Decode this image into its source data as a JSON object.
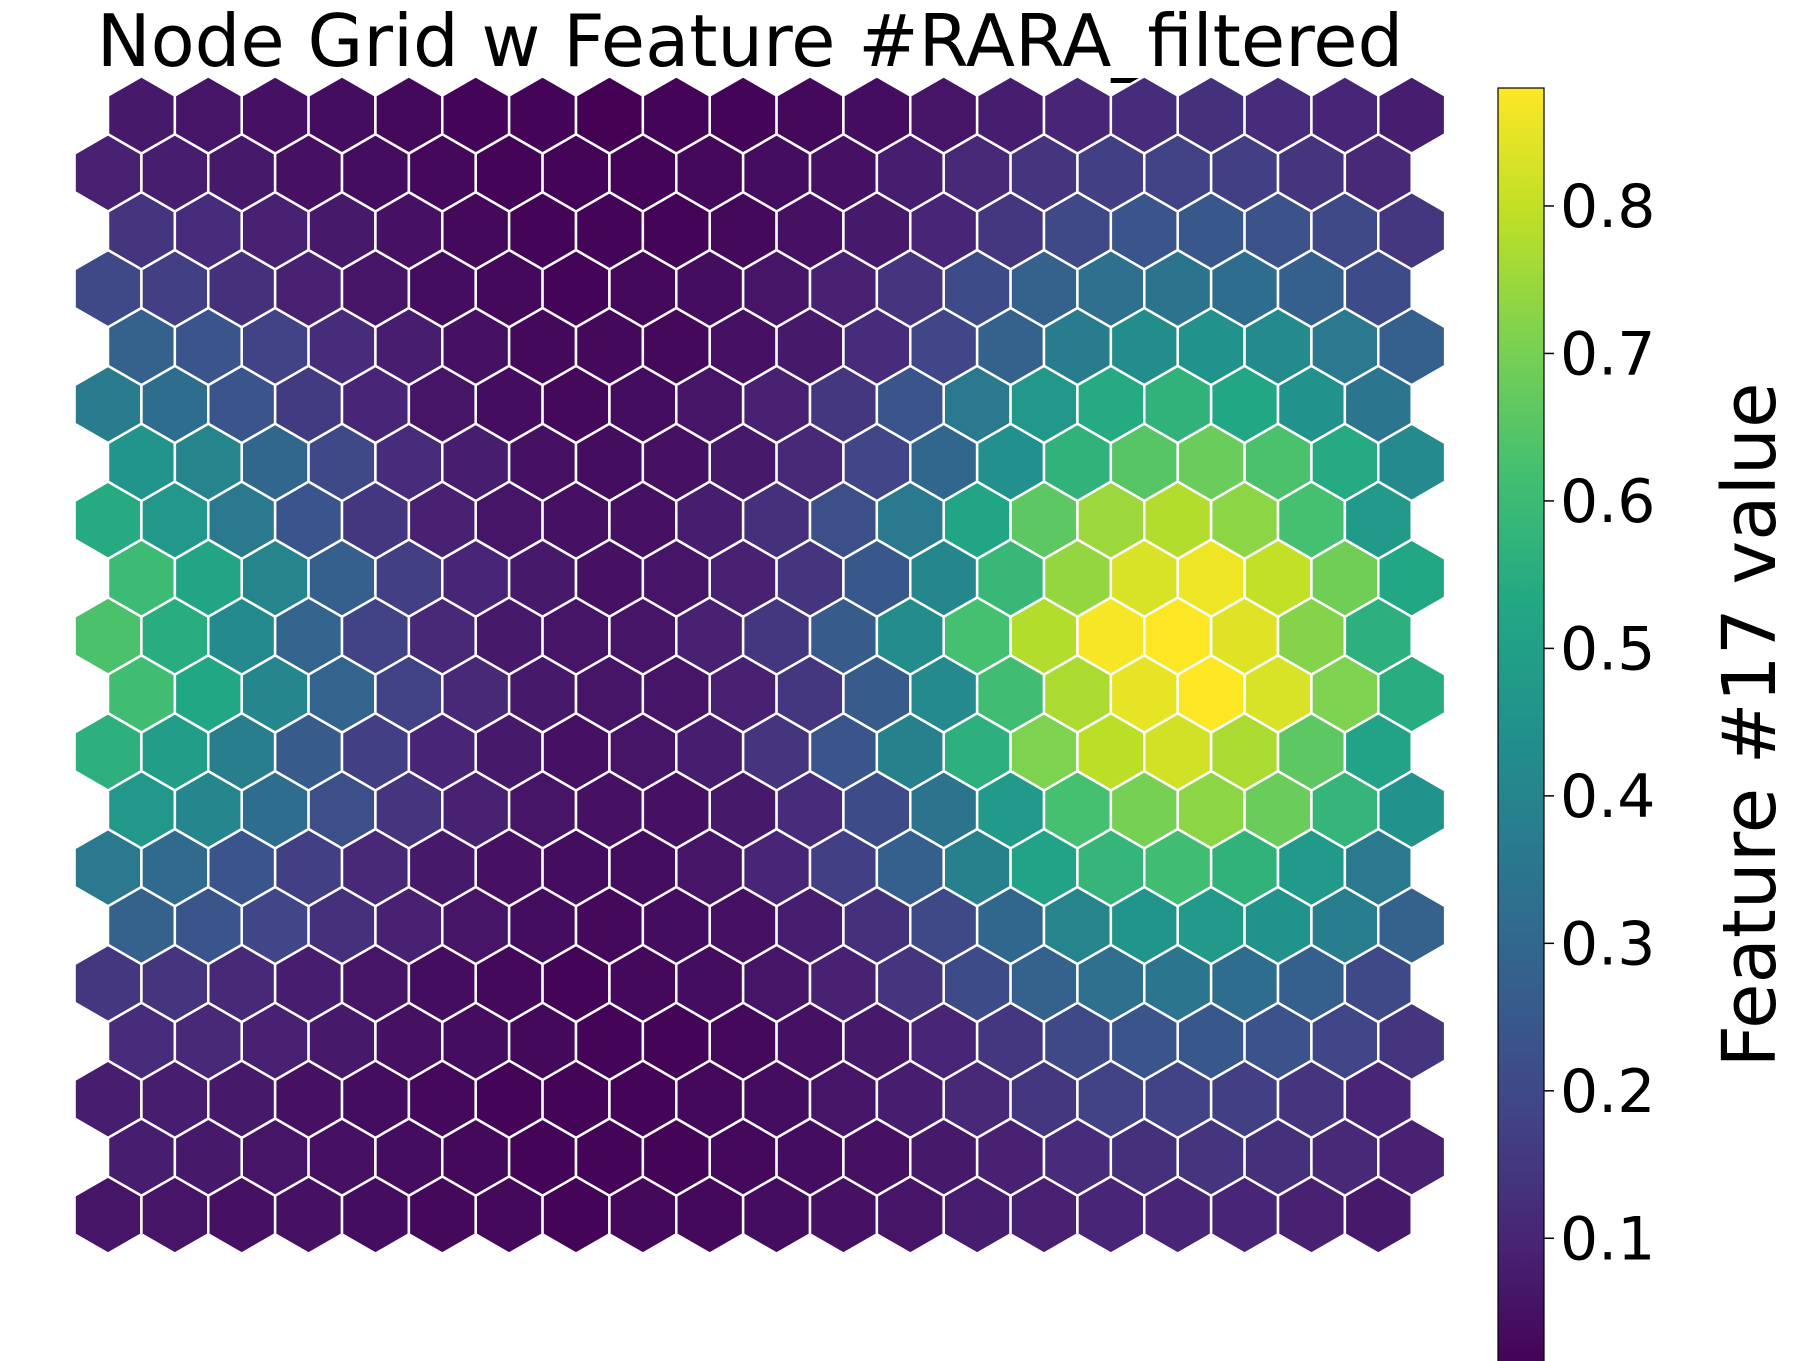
{
  "chart_data": {
    "type": "heatmap",
    "title": "Node Grid w Feature #RARA_filtered",
    "colorbar": {
      "label": "Feature #17 value",
      "ticks": [
        "0.1",
        "0.2",
        "0.3",
        "0.4",
        "0.5",
        "0.6",
        "0.7",
        "0.8"
      ],
      "tick_values": [
        0.1,
        0.2,
        0.3,
        0.4,
        0.5,
        0.6,
        0.7,
        0.8
      ],
      "range": [
        0.01,
        0.88
      ],
      "colormap": "viridis"
    },
    "grid": {
      "rows": 20,
      "cols": 20,
      "layout": "hexagonal",
      "odd_rows_offset": true,
      "axes_visible": false
    },
    "values": [
      [
        0.06,
        0.06,
        0.05,
        0.05,
        0.04,
        0.03,
        0.03,
        0.02,
        0.03,
        0.03,
        0.04,
        0.05,
        0.06,
        0.08,
        0.09,
        0.1,
        0.1,
        0.1,
        0.09,
        0.07
      ],
      [
        0.08,
        0.07,
        0.06,
        0.05,
        0.04,
        0.03,
        0.02,
        0.02,
        0.02,
        0.03,
        0.04,
        0.05,
        0.07,
        0.09,
        0.12,
        0.13,
        0.14,
        0.13,
        0.11,
        0.09
      ],
      [
        0.08,
        0.08,
        0.07,
        0.05,
        0.04,
        0.03,
        0.02,
        0.02,
        0.02,
        0.03,
        0.04,
        0.06,
        0.08,
        0.11,
        0.15,
        0.18,
        0.18,
        0.17,
        0.14,
        0.1
      ],
      [
        0.12,
        0.11,
        0.09,
        0.07,
        0.05,
        0.04,
        0.03,
        0.02,
        0.02,
        0.03,
        0.05,
        0.07,
        0.1,
        0.15,
        0.2,
        0.24,
        0.25,
        0.23,
        0.19,
        0.14
      ],
      [
        0.15,
        0.14,
        0.11,
        0.08,
        0.06,
        0.04,
        0.03,
        0.02,
        0.03,
        0.04,
        0.06,
        0.09,
        0.14,
        0.21,
        0.28,
        0.33,
        0.35,
        0.32,
        0.27,
        0.2
      ],
      [
        0.28,
        0.24,
        0.19,
        0.13,
        0.09,
        0.06,
        0.04,
        0.03,
        0.04,
        0.05,
        0.08,
        0.13,
        0.2,
        0.3,
        0.4,
        0.46,
        0.48,
        0.45,
        0.38,
        0.28
      ],
      [
        0.36,
        0.31,
        0.24,
        0.17,
        0.11,
        0.07,
        0.05,
        0.04,
        0.04,
        0.06,
        0.1,
        0.17,
        0.27,
        0.39,
        0.51,
        0.58,
        0.61,
        0.57,
        0.48,
        0.36
      ],
      [
        0.47,
        0.41,
        0.32,
        0.22,
        0.14,
        0.09,
        0.06,
        0.05,
        0.05,
        0.07,
        0.12,
        0.21,
        0.34,
        0.48,
        0.62,
        0.7,
        0.73,
        0.68,
        0.58,
        0.45
      ],
      [
        0.56,
        0.49,
        0.38,
        0.26,
        0.17,
        0.1,
        0.07,
        0.05,
        0.06,
        0.08,
        0.14,
        0.24,
        0.39,
        0.56,
        0.71,
        0.79,
        0.82,
        0.77,
        0.66,
        0.51
      ],
      [
        0.61,
        0.53,
        0.41,
        0.29,
        0.18,
        0.11,
        0.07,
        0.06,
        0.06,
        0.09,
        0.15,
        0.26,
        0.42,
        0.61,
        0.77,
        0.85,
        0.88,
        0.83,
        0.71,
        0.55
      ],
      [
        0.63,
        0.55,
        0.42,
        0.29,
        0.18,
        0.11,
        0.07,
        0.06,
        0.06,
        0.09,
        0.15,
        0.26,
        0.43,
        0.62,
        0.78,
        0.87,
        0.88,
        0.84,
        0.72,
        0.56
      ],
      [
        0.6,
        0.52,
        0.4,
        0.27,
        0.17,
        0.1,
        0.07,
        0.05,
        0.06,
        0.09,
        0.14,
        0.25,
        0.41,
        0.59,
        0.74,
        0.83,
        0.86,
        0.8,
        0.69,
        0.53
      ],
      [
        0.54,
        0.47,
        0.36,
        0.24,
        0.15,
        0.09,
        0.06,
        0.05,
        0.05,
        0.08,
        0.13,
        0.22,
        0.36,
        0.52,
        0.66,
        0.75,
        0.78,
        0.73,
        0.62,
        0.48
      ],
      [
        0.46,
        0.4,
        0.3,
        0.2,
        0.12,
        0.08,
        0.05,
        0.04,
        0.05,
        0.07,
        0.11,
        0.19,
        0.3,
        0.44,
        0.57,
        0.65,
        0.68,
        0.63,
        0.54,
        0.42
      ],
      [
        0.37,
        0.32,
        0.24,
        0.16,
        0.1,
        0.06,
        0.04,
        0.03,
        0.04,
        0.06,
        0.09,
        0.15,
        0.24,
        0.36,
        0.47,
        0.54,
        0.57,
        0.53,
        0.45,
        0.35
      ],
      [
        0.28,
        0.24,
        0.18,
        0.12,
        0.08,
        0.05,
        0.03,
        0.03,
        0.03,
        0.05,
        0.07,
        0.12,
        0.19,
        0.28,
        0.37,
        0.43,
        0.45,
        0.42,
        0.36,
        0.27
      ],
      [
        0.2,
        0.17,
        0.13,
        0.09,
        0.06,
        0.04,
        0.03,
        0.02,
        0.03,
        0.04,
        0.06,
        0.09,
        0.14,
        0.21,
        0.28,
        0.33,
        0.34,
        0.32,
        0.27,
        0.21
      ],
      [
        0.14,
        0.12,
        0.09,
        0.07,
        0.05,
        0.03,
        0.02,
        0.02,
        0.02,
        0.03,
        0.05,
        0.07,
        0.1,
        0.15,
        0.2,
        0.24,
        0.25,
        0.23,
        0.2,
        0.15
      ],
      [
        0.09,
        0.08,
        0.07,
        0.05,
        0.04,
        0.03,
        0.02,
        0.02,
        0.02,
        0.03,
        0.04,
        0.05,
        0.08,
        0.11,
        0.14,
        0.17,
        0.18,
        0.17,
        0.14,
        0.11
      ],
      [
        0.07,
        0.06,
        0.05,
        0.04,
        0.03,
        0.02,
        0.02,
        0.01,
        0.02,
        0.02,
        0.03,
        0.04,
        0.06,
        0.08,
        0.1,
        0.12,
        0.13,
        0.12,
        0.1,
        0.08
      ]
    ]
  }
}
